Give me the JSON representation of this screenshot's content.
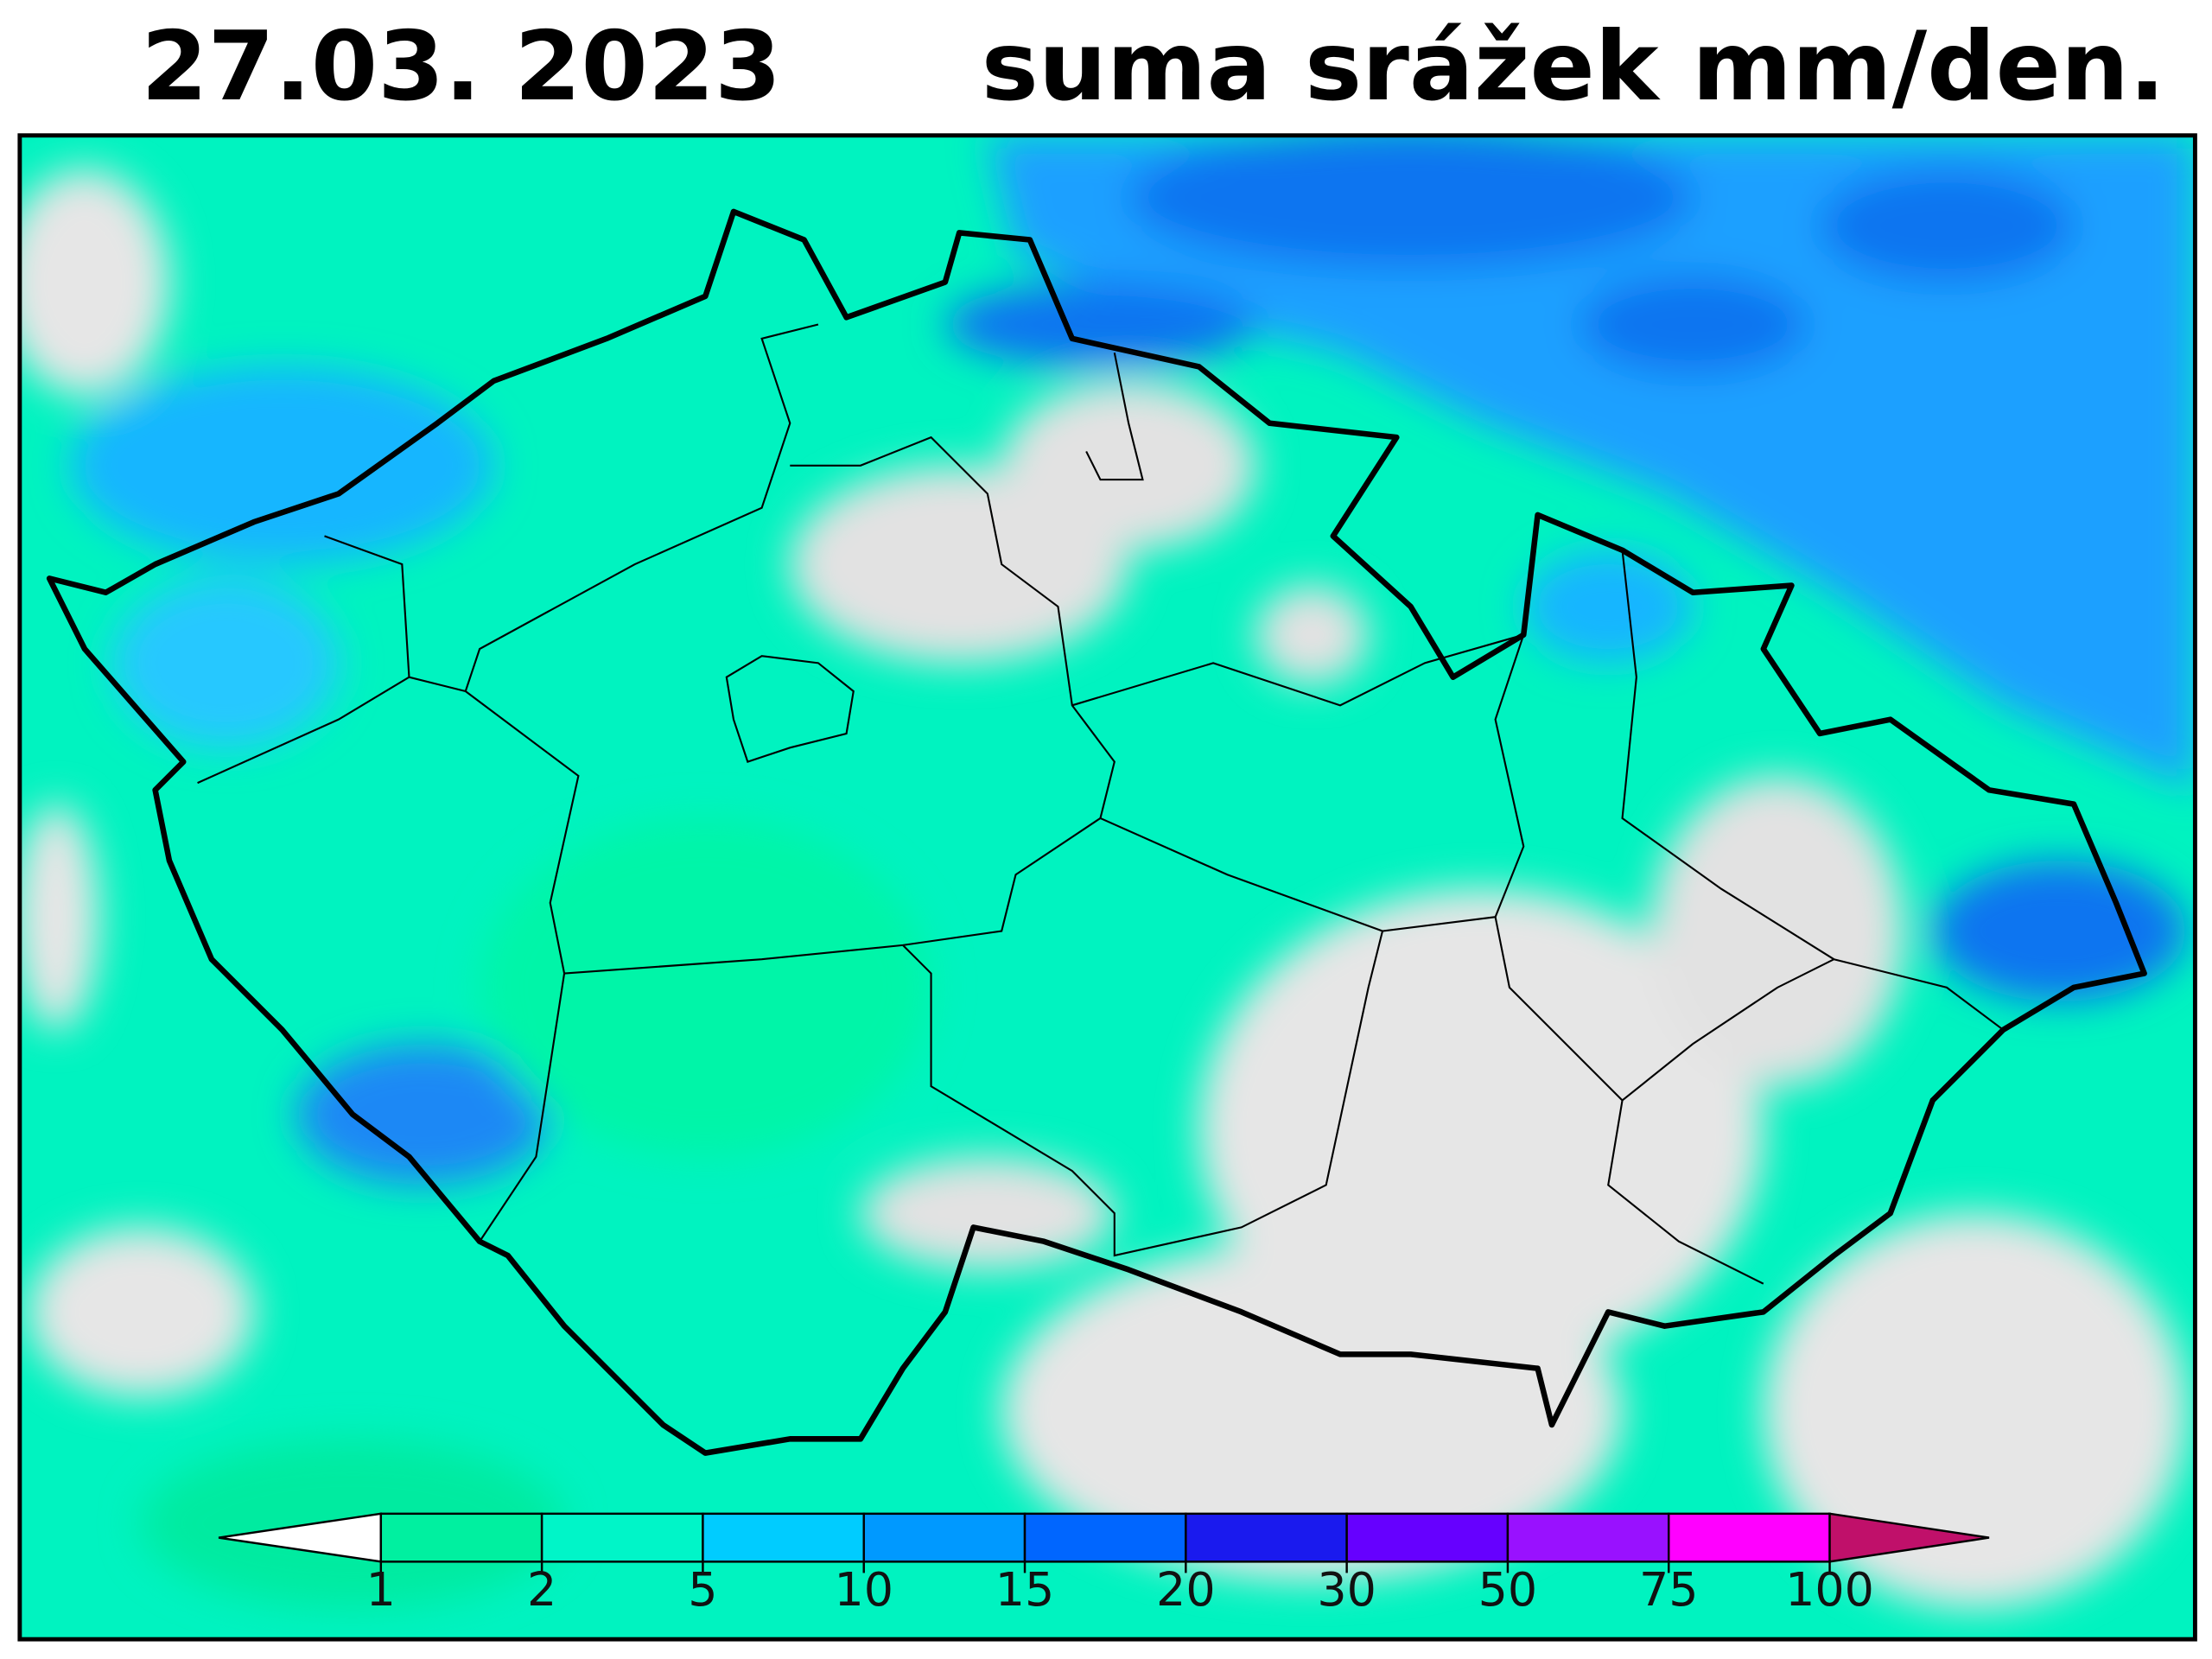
{
  "header": {
    "date": "27.03.  2023",
    "title": "suma srážek mm/den."
  },
  "legend": {
    "ticks": [
      1,
      2,
      5,
      10,
      15,
      20,
      30,
      50,
      75,
      100
    ],
    "under_color": "#ffffff",
    "colors": [
      "#00f0a0",
      "#00f5c8",
      "#00ccff",
      "#0099ff",
      "#0066ff",
      "#1a1aee",
      "#6600ff",
      "#9911ff",
      "#ff00ff"
    ],
    "over_color": "#c0106a"
  }
}
